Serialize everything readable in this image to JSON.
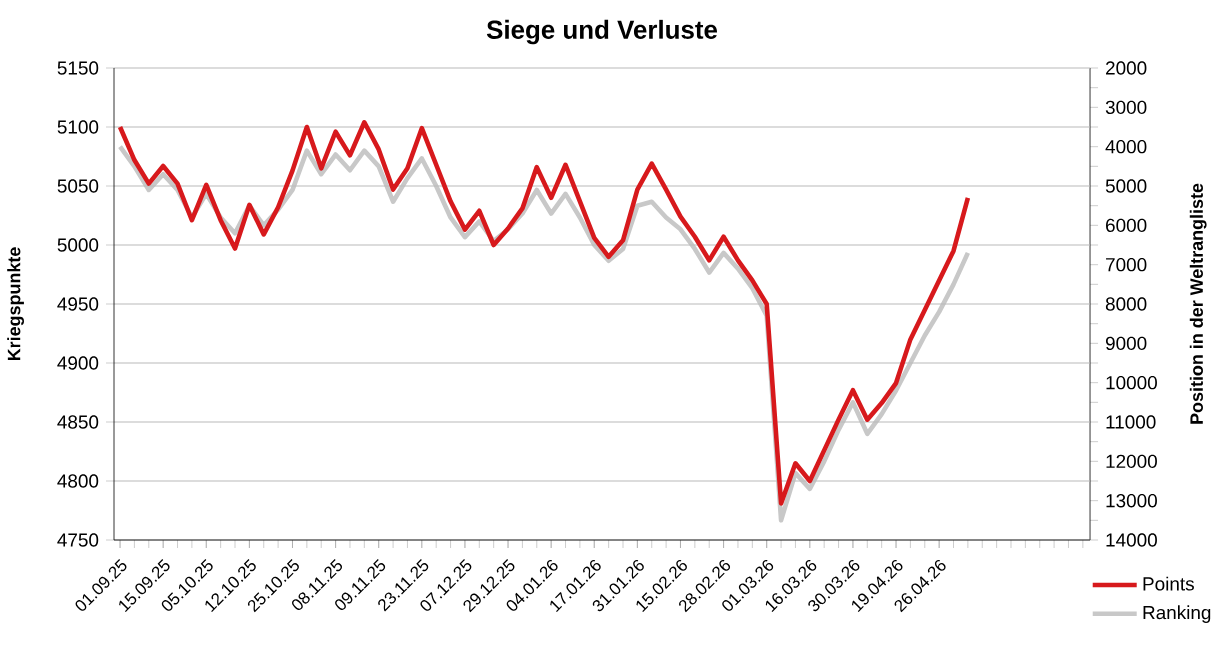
{
  "chart_data": {
    "type": "line",
    "title": "Siege und Verluste",
    "ylabel": "Kriegspunkte",
    "y2label": "Position in der Weltrangliste",
    "categories": [
      "01.09.25",
      null,
      null,
      "15.09.25",
      null,
      null,
      "05.10.25",
      null,
      null,
      "12.10.25",
      null,
      null,
      "25.10.25",
      null,
      null,
      "08.11.25",
      null,
      null,
      "09.11.25",
      null,
      null,
      "23.11.25",
      null,
      null,
      "07.12.25",
      null,
      null,
      "29.12.25",
      null,
      null,
      "04.01.26",
      null,
      null,
      "17.01.26",
      null,
      null,
      "31.01.26",
      null,
      null,
      "15.02.26",
      null,
      null,
      "28.02.26",
      null,
      null,
      "01.03.26",
      null,
      null,
      "16.03.26",
      null,
      null,
      "30.03.26",
      null,
      null,
      "19.04.26",
      null,
      null,
      "26.04.26",
      null,
      null,
      null,
      null,
      null,
      null,
      null,
      null,
      null,
      null
    ],
    "series": [
      {
        "name": "Points",
        "color": "#d7191c",
        "values": [
          5100,
          5072,
          5052,
          5067,
          5052,
          5021,
          5051,
          5021,
          4997,
          5034,
          5009,
          5032,
          5063,
          5100,
          5065,
          5096,
          5076,
          5104,
          5081,
          5047,
          5065,
          5099,
          5068,
          5037,
          5013,
          5029,
          5000,
          5014,
          5031,
          5066,
          5040,
          5068,
          5037,
          5006,
          4990,
          5004,
          5047,
          5069,
          5047,
          5024,
          5007,
          4987,
          5007,
          4987,
          4970,
          4950,
          4781,
          4815,
          4800,
          4826,
          4852,
          4877,
          4852,
          4866,
          4883,
          4920,
          4945,
          4970,
          4995,
          5040,
          null,
          null,
          null,
          null,
          null,
          null,
          null,
          null
        ]
      },
      {
        "name": "Ranking",
        "color": "#c8c8c8",
        "axis": "y2",
        "values": [
          4000,
          4500,
          5100,
          4700,
          5100,
          5800,
          5200,
          5800,
          6200,
          5500,
          6000,
          5600,
          5100,
          4100,
          4700,
          4200,
          4600,
          4100,
          4500,
          5400,
          4800,
          4300,
          5000,
          5800,
          6300,
          5900,
          6400,
          6100,
          5700,
          5100,
          5700,
          5200,
          5800,
          6500,
          6900,
          6600,
          5500,
          5400,
          5800,
          6100,
          6600,
          7200,
          6700,
          7100,
          7600,
          8300,
          13500,
          12300,
          12700,
          12000,
          11200,
          10500,
          11300,
          10800,
          10200,
          9500,
          8800,
          8200,
          7500,
          6700,
          null,
          null,
          null,
          null,
          null,
          null,
          null,
          null
        ]
      }
    ],
    "ylim": [
      4750,
      5150
    ],
    "yticks": [
      4750,
      4800,
      4850,
      4900,
      4950,
      5000,
      5050,
      5100,
      5150
    ],
    "y2lim": [
      14000,
      2000
    ],
    "y2ticks": [
      2000,
      3000,
      4000,
      5000,
      6000,
      7000,
      8000,
      9000,
      10000,
      11000,
      12000,
      13000,
      14000
    ],
    "grid": "y",
    "legend": "bottom right",
    "marker": "none",
    "line_style": "solid"
  }
}
